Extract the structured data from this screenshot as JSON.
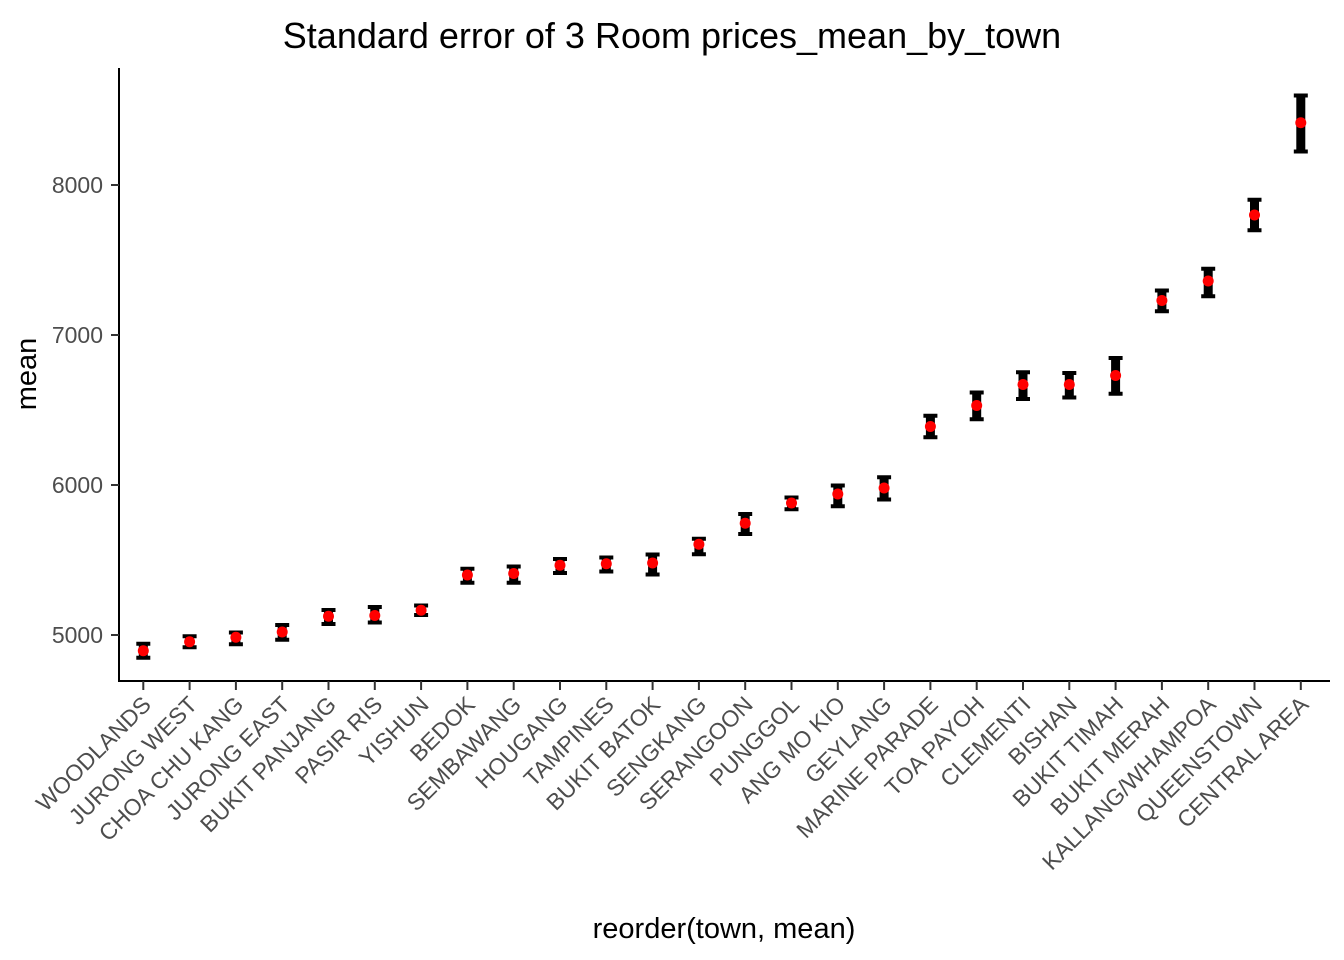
{
  "chart_data": {
    "type": "scatter",
    "mark": "point-with-errorbar",
    "title": "Standard error of 3 Room prices_mean_by_town",
    "xlabel": "reorder(town, mean)",
    "ylabel": "mean",
    "categories": [
      "WOODLANDS",
      "JURONG WEST",
      "CHOA CHU KANG",
      "JURONG EAST",
      "BUKIT PANJANG",
      "PASIR RIS",
      "YISHUN",
      "BEDOK",
      "SEMBAWANG",
      "HOUGANG",
      "TAMPINES",
      "BUKIT BATOK",
      "SENGKANG",
      "SERANGOON",
      "PUNGGOL",
      "ANG MO KIO",
      "GEYLANG",
      "MARINE PARADE",
      "TOA PAYOH",
      "CLEMENTI",
      "BISHAN",
      "BUKIT TIMAH",
      "BUKIT MERAH",
      "KALLANG/WHAMPOA",
      "QUEENSTOWN",
      "CENTRAL AREA"
    ],
    "series": [
      {
        "name": "mean",
        "values": [
          4895,
          4955,
          4985,
          5020,
          5125,
          5130,
          5165,
          5400,
          5410,
          5465,
          5475,
          5480,
          5605,
          5745,
          5880,
          5940,
          5980,
          6390,
          6530,
          6670,
          6670,
          6730,
          7230,
          7360,
          7800,
          8415
        ]
      },
      {
        "name": "ymin",
        "values": [
          4845,
          4915,
          4935,
          4965,
          5070,
          5080,
          5130,
          5345,
          5345,
          5410,
          5420,
          5400,
          5535,
          5670,
          5835,
          5855,
          5900,
          6315,
          6435,
          6570,
          6580,
          6605,
          7155,
          7255,
          7695,
          8220
        ]
      },
      {
        "name": "ymax",
        "values": [
          4945,
          4995,
          5020,
          5070,
          5170,
          5190,
          5200,
          5445,
          5460,
          5510,
          5520,
          5540,
          5645,
          5810,
          5920,
          6000,
          6055,
          6465,
          6620,
          6755,
          6750,
          6850,
          7300,
          7445,
          7905,
          8600
        ]
      }
    ],
    "y_ticks": [
      5000,
      6000,
      7000,
      8000
    ],
    "ylim": [
      4690,
      8780
    ],
    "grid": false,
    "legend": "none",
    "x_label_angle_deg": 45,
    "colors": {
      "point": "#ff0000",
      "errorbar": "#000000",
      "axis_line": "#000000",
      "tick_mark": "#333333",
      "tick_label": "#4d4d4d",
      "text": "#000000",
      "background": "#ffffff"
    }
  }
}
